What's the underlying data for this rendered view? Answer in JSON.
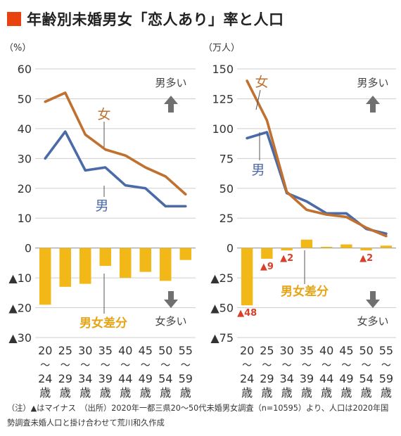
{
  "title": "年齢別未婚男女「恋人あり」率と人口",
  "footnote": "（注）▲はマイナス　（出所）2020年一都三県20～50代未婚男女調査（n=10595）より、人口は2020年国勢調査未婚人口と掛け合わせて荒川和久作成",
  "colors": {
    "title_square": "#E8420E",
    "male": "#4A6AA8",
    "female": "#C0702F",
    "bar": "#F2B818",
    "arrow": "#707070",
    "neg_label": "#D8402A",
    "bar_label": "#E6A417"
  },
  "chart_data": [
    {
      "type": "line+bar",
      "unit_label": "（%）",
      "categories": [
        "20～24歳",
        "25～29歳",
        "30～34歳",
        "35～39歳",
        "40～44歳",
        "45～49歳",
        "50～54歳",
        "55～59歳"
      ],
      "category_lines": [
        [
          "20",
          "～",
          "24",
          "歳"
        ],
        [
          "25",
          "～",
          "29",
          "歳"
        ],
        [
          "30",
          "～",
          "34",
          "歳"
        ],
        [
          "35",
          "～",
          "39",
          "歳"
        ],
        [
          "40",
          "～",
          "44",
          "歳"
        ],
        [
          "45",
          "～",
          "49",
          "歳"
        ],
        [
          "50",
          "～",
          "54",
          "歳"
        ],
        [
          "55",
          "～",
          "59",
          "歳"
        ]
      ],
      "ylim": [
        -30,
        60
      ],
      "yticks": [
        60,
        50,
        40,
        30,
        20,
        10,
        0,
        -10,
        -20,
        -30
      ],
      "ytick_labels": [
        "60",
        "50",
        "40",
        "30",
        "20",
        "10",
        "0",
        "▲10",
        "▲20",
        "▲30"
      ],
      "series": [
        {
          "name": "男",
          "type": "line",
          "values": [
            30,
            39,
            26,
            27,
            21,
            20,
            14,
            14
          ]
        },
        {
          "name": "女",
          "type": "line",
          "values": [
            49,
            52,
            38,
            33,
            31,
            27,
            24,
            18
          ]
        },
        {
          "name": "男女差分",
          "type": "bar",
          "values": [
            -19,
            -13,
            -12,
            -6,
            -10,
            -8,
            -11,
            -4
          ]
        }
      ],
      "annotations": {
        "male_more": "男多い",
        "female_more": "女多い"
      }
    },
    {
      "type": "line+bar",
      "unit_label": "（万人）",
      "categories": [
        "20～24歳",
        "25～29歳",
        "30～34歳",
        "35～39歳",
        "40～44歳",
        "45～49歳",
        "50～54歳",
        "55～59歳"
      ],
      "category_lines": [
        [
          "20",
          "～",
          "24",
          "歳"
        ],
        [
          "25",
          "～",
          "29",
          "歳"
        ],
        [
          "30",
          "～",
          "34",
          "歳"
        ],
        [
          "35",
          "～",
          "39",
          "歳"
        ],
        [
          "40",
          "～",
          "44",
          "歳"
        ],
        [
          "45",
          "～",
          "49",
          "歳"
        ],
        [
          "50",
          "～",
          "54",
          "歳"
        ],
        [
          "55",
          "～",
          "59",
          "歳"
        ]
      ],
      "ylim": [
        -75,
        150
      ],
      "yticks": [
        150,
        125,
        100,
        75,
        50,
        25,
        0,
        -25,
        -50,
        -75
      ],
      "ytick_labels": [
        "150",
        "125",
        "100",
        "75",
        "50",
        "25",
        "0",
        "▲25",
        "▲50",
        "▲75"
      ],
      "series": [
        {
          "name": "男",
          "type": "line",
          "values": [
            92,
            97,
            46,
            39,
            29,
            29,
            16,
            12
          ]
        },
        {
          "name": "女",
          "type": "line",
          "values": [
            140,
            107,
            47,
            32,
            28,
            26,
            17,
            10
          ]
        },
        {
          "name": "男女差分",
          "type": "bar",
          "values": [
            -48,
            -9,
            -2,
            7,
            1,
            3,
            -2,
            2
          ]
        }
      ],
      "bar_value_labels": [
        {
          "index": 0,
          "text": "▲48"
        },
        {
          "index": 1,
          "text": "▲9"
        },
        {
          "index": 2,
          "text": "▲2"
        },
        {
          "index": 6,
          "text": "▲2"
        }
      ],
      "annotations": {
        "male_more": "男多い",
        "female_more": "女多い"
      }
    }
  ]
}
